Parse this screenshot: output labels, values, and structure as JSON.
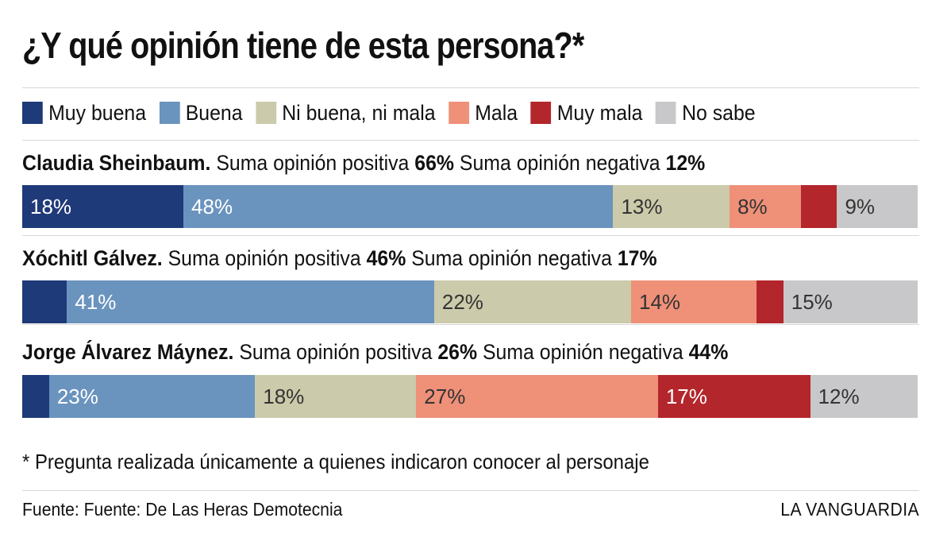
{
  "colors": {
    "Muy buena": "#1f3a78",
    "Buena": "#6a93be",
    "Ni buena, ni mala": "#cbcaaa",
    "Mala": "#ef9079",
    "Muy mala": "#b3262c",
    "No sabe": "#c8c8ca"
  },
  "label_colors": {
    "Muy buena": "#ffffff",
    "Buena": "#ffffff",
    "Ni buena, ni mala": "#333333",
    "Mala": "#333333",
    "Muy mala": "#ffffff",
    "No sabe": "#333333"
  },
  "chart_data": {
    "type": "bar",
    "orientation": "horizontal-stacked",
    "title": "¿Y qué opinión tiene de esta persona?*",
    "legend": [
      "Muy buena",
      "Buena",
      "Ni buena, ni mala",
      "Mala",
      "Muy mala",
      "No sabe"
    ],
    "legend_position": "top",
    "unit": "%",
    "rows": [
      {
        "name": "Claudia Sheinbaum.",
        "summary_prefix": "Suma opinión positiva",
        "positive": "66%",
        "summary_middle": "Suma opinión negativa",
        "negative": "12%",
        "values": [
          18,
          48,
          13,
          8,
          4,
          9
        ],
        "labels": [
          "18%",
          "48%",
          "13%",
          "8%",
          "",
          "9%"
        ]
      },
      {
        "name": "Xóchitl Gálvez.",
        "summary_prefix": "Suma opinión positiva",
        "positive": "46%",
        "summary_middle": "Suma opinión negativa",
        "negative": "17%",
        "values": [
          5,
          41,
          22,
          14,
          3,
          15
        ],
        "labels": [
          "",
          "41%",
          "22%",
          "14%",
          "",
          "15%"
        ]
      },
      {
        "name": "Jorge Álvarez Máynez.",
        "summary_prefix": "Suma opinión positiva",
        "positive": "26%",
        "summary_middle": "Suma opinión negativa",
        "negative": "44%",
        "values": [
          3,
          23,
          18,
          27,
          17,
          12
        ],
        "labels": [
          "",
          "23%",
          "18%",
          "27%",
          "17%",
          "12%"
        ]
      }
    ]
  },
  "note": "* Pregunta realizada únicamente a quienes indicaron conocer al personaje",
  "source": "Fuente: Fuente: De Las Heras Demotecnia",
  "brand": "LA VANGUARDIA"
}
